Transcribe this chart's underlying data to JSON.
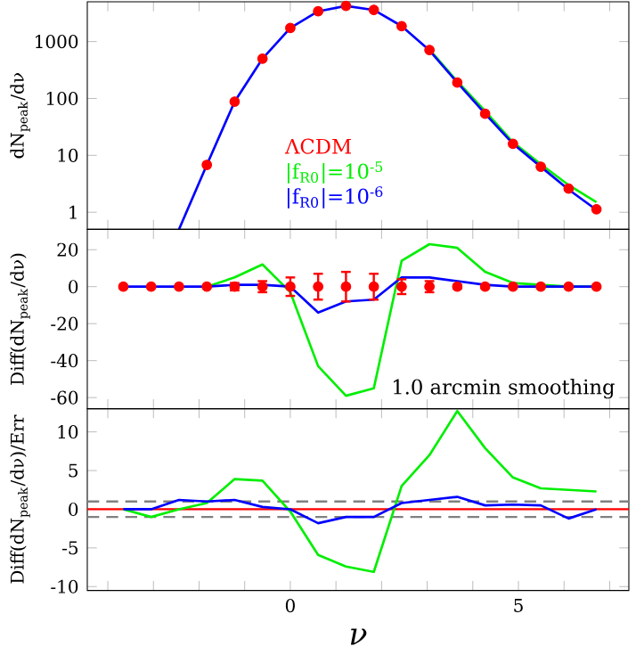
{
  "chart_data": [
    {
      "type": "line",
      "ylabel": "dN$_{peak}$/dν",
      "log": "y",
      "legend": "bottom",
      "tick_labels": "y",
      "x": [
        -2.44,
        -1.83,
        -1.22,
        -0.61,
        0,
        0.61,
        1.22,
        1.83,
        2.44,
        3.05,
        3.66,
        4.27,
        4.88,
        5.49,
        6.1,
        6.71
      ],
      "xlim": [
        -4.45,
        7.42
      ],
      "ylim": [
        0.5,
        5000
      ],
      "xticks": [
        {
          "value": -4,
          "label": null
        },
        {
          "value": -3,
          "label": null
        },
        {
          "value": -2,
          "label": null
        },
        {
          "value": -1,
          "label": null
        },
        {
          "value": 0,
          "label": null
        },
        {
          "value": 1,
          "label": null
        },
        {
          "value": 2,
          "label": null
        },
        {
          "value": 3,
          "label": null
        },
        {
          "value": 4,
          "label": null
        },
        {
          "value": 5,
          "label": null
        },
        {
          "value": 6,
          "label": null
        },
        {
          "value": 7,
          "label": null
        }
      ],
      "yticks": [
        1,
        10,
        100,
        1000
      ],
      "series": [
        {
          "name": "ΛCDM",
          "type": "scatter",
          "marker": "circle",
          "color": "#ff0000",
          "values": [
            null,
            6.8,
            88,
            500,
            1740,
            3400,
            4240,
            3590,
            1870,
            710,
            190,
            54,
            16,
            6.3,
            2.6,
            1.13
          ]
        },
        {
          "name": "|f$_{R0}$|=10$^{-5}$",
          "color": "#00ee00",
          "values": [
            null,
            null,
            null,
            null,
            null,
            null,
            null,
            null,
            null,
            720,
            200,
            60,
            17,
            7,
            3,
            1.5
          ]
        },
        {
          "name": "|f$_{R0}$|=10$^{-6}$",
          "color": "#0000ff",
          "values": [
            0.5,
            6.8,
            88,
            500,
            1740,
            3400,
            4240,
            3590,
            1870,
            700,
            190,
            54,
            16,
            6.3,
            2.5,
            1.1
          ]
        }
      ]
    },
    {
      "type": "line",
      "ylabel": "Diff(dN$_{peak}$/dν)",
      "tick_labels": "y",
      "x": [
        -3.66,
        -3.05,
        -2.44,
        -1.83,
        -1.22,
        -0.61,
        0,
        0.61,
        1.22,
        1.83,
        2.44,
        3.05,
        3.66,
        4.27,
        4.88,
        5.49,
        6.1,
        6.71
      ],
      "xlim": [
        -4.45,
        7.42
      ],
      "ylim": [
        -66,
        31
      ],
      "xticks": [
        {
          "value": -4,
          "label": null
        },
        {
          "value": -3,
          "label": null
        },
        {
          "value": -2,
          "label": null
        },
        {
          "value": -1,
          "label": null
        },
        {
          "value": 0,
          "label": null
        },
        {
          "value": 1,
          "label": null
        },
        {
          "value": 2,
          "label": null
        },
        {
          "value": 3,
          "label": null
        },
        {
          "value": 4,
          "label": null
        },
        {
          "value": 5,
          "label": null
        },
        {
          "value": 6,
          "label": null
        },
        {
          "value": 7,
          "label": null
        }
      ],
      "yticks": [
        -60,
        -40,
        -20,
        0,
        20
      ],
      "annotations": [
        "1.0 arcmin smoothing"
      ],
      "series": [
        {
          "type": "scatter",
          "marker": "circle",
          "color": "#ff0000",
          "values": [
            0,
            0,
            0,
            0,
            0,
            0,
            0,
            0,
            0,
            0,
            0,
            0,
            0,
            0,
            0,
            0,
            0,
            0
          ],
          "errors": [
            null,
            null,
            null,
            null,
            2,
            3,
            5,
            7,
            8,
            7,
            4,
            3,
            1,
            null,
            null,
            null,
            null,
            null
          ]
        },
        {
          "color": "#00ee00",
          "values": [
            null,
            null,
            null,
            0,
            5,
            12,
            -3,
            -43,
            -59,
            -55,
            14,
            23,
            21,
            8,
            2,
            1,
            0,
            0
          ]
        },
        {
          "color": "#0000ff",
          "values": [
            0,
            0,
            0,
            0,
            1,
            1,
            0,
            -14,
            -8,
            -7,
            5,
            5,
            3,
            1,
            0,
            0,
            0,
            0
          ]
        }
      ]
    },
    {
      "type": "line",
      "ylabel": "Diff(dN$_{peak}$/dν)/Err",
      "xlabel": "ν",
      "x": [
        -3.66,
        -3.05,
        -2.44,
        -1.83,
        -1.22,
        -0.61,
        0,
        0.61,
        1.22,
        1.83,
        2.44,
        3.05,
        3.66,
        4.27,
        4.88,
        5.49,
        6.1,
        6.71
      ],
      "xlim": [
        -4.45,
        7.42
      ],
      "ylim": [
        -10.5,
        13
      ],
      "xticks": [
        {
          "value": -4,
          "label": null
        },
        {
          "value": -3,
          "label": null
        },
        {
          "value": -2,
          "label": null
        },
        {
          "value": -1,
          "label": null
        },
        0,
        {
          "value": 1,
          "label": null
        },
        {
          "value": 2,
          "label": null
        },
        {
          "value": 3,
          "label": null
        },
        {
          "value": 4,
          "label": null
        },
        5,
        {
          "value": 6,
          "label": null
        },
        {
          "value": 7,
          "label": null
        }
      ],
      "yticks": [
        -10,
        -5,
        0,
        5,
        10
      ],
      "ref_lines": [
        {
          "axis": "y",
          "value": 0,
          "color": "#ff0000"
        },
        {
          "axis": "y",
          "value": 1,
          "color": "#808080",
          "line_style": "dashed"
        },
        {
          "axis": "y",
          "value": -1,
          "color": "#808080",
          "line_style": "dashed"
        }
      ],
      "series": [
        {
          "color": "#00ee00",
          "values": [
            0,
            -1,
            0,
            0.8,
            3.9,
            3.7,
            -0.3,
            -5.9,
            -7.4,
            -8.1,
            3,
            7,
            12.7,
            7.9,
            4.1,
            2.7,
            2.5,
            2.3
          ]
        },
        {
          "color": "#0000ff",
          "values": [
            0,
            0,
            1.2,
            1,
            1.2,
            0.3,
            0,
            -1.8,
            -1,
            -1,
            0.8,
            1.2,
            1.6,
            0.5,
            0.6,
            0.5,
            -1.2,
            0
          ]
        }
      ]
    }
  ]
}
